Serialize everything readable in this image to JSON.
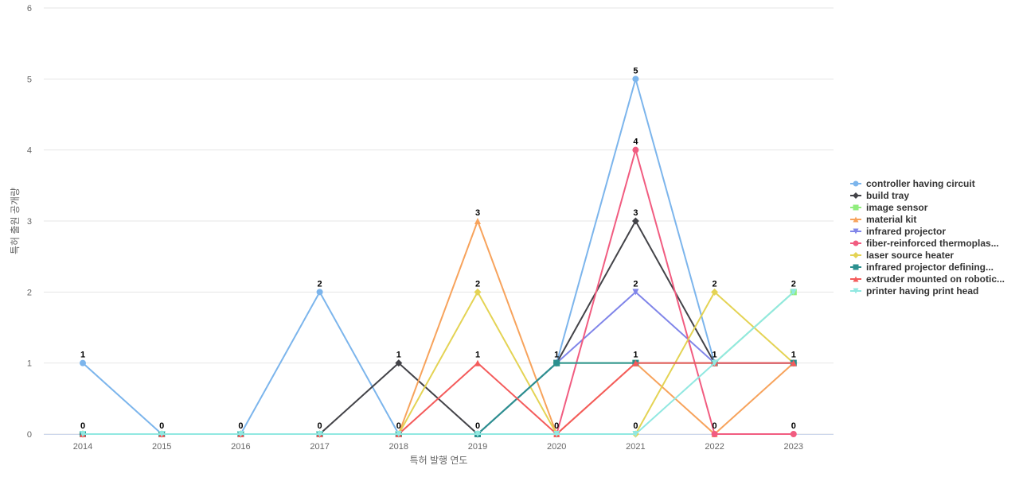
{
  "chart_data": {
    "type": "line",
    "title": "",
    "xlabel": "특허 발행 연도",
    "ylabel": "특허 출원 공개량",
    "x": [
      "2014",
      "2015",
      "2016",
      "2017",
      "2018",
      "2019",
      "2020",
      "2021",
      "2022",
      "2023"
    ],
    "ylim": [
      0,
      6
    ],
    "yticks": [
      0,
      1,
      2,
      3,
      4,
      5,
      6
    ],
    "grid": true,
    "legend_position": "right",
    "series": [
      {
        "name": "controller having circuit",
        "color": "#7cb5ec",
        "marker": "circle",
        "values": [
          1,
          0,
          0,
          2,
          0,
          0,
          1,
          5,
          1,
          1
        ]
      },
      {
        "name": "build tray",
        "color": "#434348",
        "marker": "diamond",
        "values": [
          0,
          0,
          0,
          0,
          1,
          0,
          1,
          3,
          1,
          1
        ]
      },
      {
        "name": "image sensor",
        "color": "#90ed7d",
        "marker": "square",
        "values": [
          0,
          0,
          0,
          0,
          0,
          0,
          1,
          1,
          1,
          2
        ]
      },
      {
        "name": "material kit",
        "color": "#f7a35c",
        "marker": "triangle",
        "values": [
          0,
          0,
          0,
          0,
          0,
          3,
          0,
          1,
          0,
          1
        ]
      },
      {
        "name": "infrared projector",
        "color": "#8085e9",
        "marker": "triangle-down",
        "values": [
          0,
          0,
          0,
          0,
          0,
          0,
          1,
          2,
          1,
          1
        ]
      },
      {
        "name": "fiber-reinforced thermoplas...",
        "color": "#f15c80",
        "marker": "circle",
        "values": [
          0,
          0,
          0,
          0,
          0,
          0,
          0,
          4,
          0,
          0
        ]
      },
      {
        "name": "laser source heater",
        "color": "#e4d354",
        "marker": "diamond",
        "values": [
          0,
          0,
          0,
          0,
          0,
          2,
          0,
          0,
          2,
          1
        ]
      },
      {
        "name": "infrared projector defining...",
        "color": "#2b908f",
        "marker": "square",
        "values": [
          0,
          0,
          0,
          0,
          0,
          0,
          1,
          1,
          1,
          1
        ]
      },
      {
        "name": "extruder mounted on robotic...",
        "color": "#f45b5b",
        "marker": "triangle",
        "values": [
          0,
          0,
          0,
          0,
          0,
          1,
          0,
          1,
          1,
          1
        ]
      },
      {
        "name": "printer having print head",
        "color": "#91e8e1",
        "marker": "triangle-down",
        "values": [
          0,
          0,
          0,
          0,
          0,
          0,
          0,
          0,
          1,
          2
        ]
      }
    ],
    "data_labels": [
      {
        "series": 0,
        "index": 0,
        "text": "1"
      },
      {
        "series": 0,
        "index": 1,
        "text": "0"
      },
      {
        "series": 0,
        "index": 2,
        "text": "0"
      },
      {
        "series": 0,
        "index": 3,
        "text": "2"
      },
      {
        "series": 0,
        "index": 3,
        "text": "0",
        "below": true
      },
      {
        "series": 0,
        "index": 0,
        "text": "0",
        "below": true
      },
      {
        "series": 1,
        "index": 4,
        "text": "1"
      },
      {
        "series": 1,
        "index": 4,
        "text": "0",
        "below": true
      },
      {
        "series": 3,
        "index": 5,
        "text": "3"
      },
      {
        "series": 6,
        "index": 5,
        "text": "2"
      },
      {
        "series": 8,
        "index": 5,
        "text": "1"
      },
      {
        "series": 1,
        "index": 5,
        "text": "0",
        "below": true
      },
      {
        "series": 0,
        "index": 6,
        "text": "1"
      },
      {
        "series": 5,
        "index": 6,
        "text": "0",
        "below": true
      },
      {
        "series": 0,
        "index": 7,
        "text": "5"
      },
      {
        "series": 5,
        "index": 7,
        "text": "4"
      },
      {
        "series": 1,
        "index": 7,
        "text": "3"
      },
      {
        "series": 4,
        "index": 7,
        "text": "2"
      },
      {
        "series": 7,
        "index": 7,
        "text": "1"
      },
      {
        "series": 6,
        "index": 7,
        "text": "0",
        "below": true
      },
      {
        "series": 6,
        "index": 8,
        "text": "2"
      },
      {
        "series": 0,
        "index": 8,
        "text": "1"
      },
      {
        "series": 5,
        "index": 8,
        "text": "0",
        "below": true
      },
      {
        "series": 2,
        "index": 9,
        "text": "2"
      },
      {
        "series": 0,
        "index": 9,
        "text": "1"
      },
      {
        "series": 5,
        "index": 9,
        "text": "0",
        "below": true
      }
    ]
  }
}
